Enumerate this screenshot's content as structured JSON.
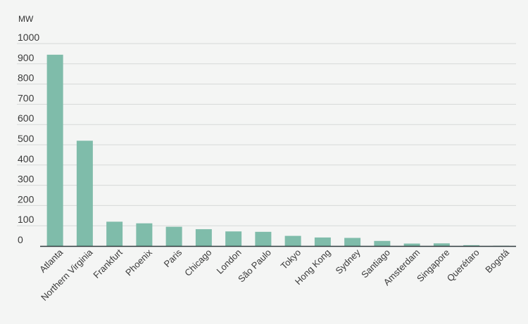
{
  "chart_data": {
    "type": "bar",
    "unit_label": "MW",
    "categories": [
      "Atlanta",
      "Northern Virginia",
      "Frankfurt",
      "Phoenix",
      "Paris",
      "Chicago",
      "London",
      "São Paulo",
      "Tokyo",
      "Hong Kong",
      "Sydney",
      "Santiago",
      "Amsterdam",
      "Singapore",
      "Querétaro",
      "Bogotá"
    ],
    "values": [
      945,
      520,
      120,
      112,
      95,
      83,
      72,
      70,
      50,
      42,
      40,
      25,
      12,
      13,
      4,
      1
    ],
    "y_ticks": [
      0,
      100,
      200,
      300,
      400,
      500,
      600,
      700,
      800,
      900,
      1000
    ],
    "ylim": [
      0,
      1000
    ],
    "grid": true,
    "bar_color": "#7fbcaa",
    "grid_color": "#d6d9d8",
    "axis_color": "#2f3a3d"
  }
}
